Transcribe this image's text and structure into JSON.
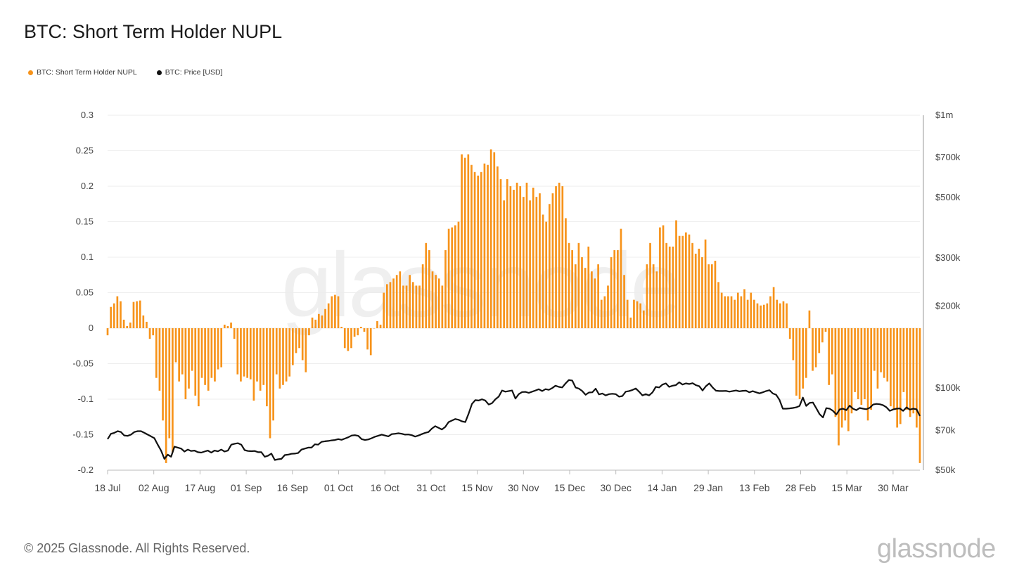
{
  "header": {
    "title": "BTC: Short Term Holder NUPL"
  },
  "legend": {
    "items": [
      {
        "label": "BTC: Short Term Holder NUPL",
        "color": "#f7931a"
      },
      {
        "label": "BTC: Price [USD]",
        "color": "#111111"
      }
    ]
  },
  "footer": {
    "copyright": "© 2025 Glassnode. All Rights Reserved.",
    "logo": "glassnode"
  },
  "watermark": "glassnode",
  "chart_data": {
    "type": "bar",
    "title": "BTC: Short Term Holder NUPL",
    "x_tick_labels": [
      "18 Jul",
      "02 Aug",
      "17 Aug",
      "01 Sep",
      "16 Sep",
      "01 Oct",
      "16 Oct",
      "31 Oct",
      "15 Nov",
      "30 Nov",
      "15 Dec",
      "30 Dec",
      "14 Jan",
      "29 Jan",
      "13 Feb",
      "28 Feb",
      "15 Mar",
      "30 Mar"
    ],
    "left_axis": {
      "ylim": [
        -0.2,
        0.3
      ],
      "ticks": [
        -0.2,
        -0.15,
        -0.1,
        -0.05,
        0,
        0.05,
        0.1,
        0.15,
        0.2,
        0.25,
        0.3
      ],
      "tick_labels": [
        "-0.2",
        "-0.15",
        "-0.1",
        "-0.05",
        "0",
        "0.05",
        "0.1",
        "0.15",
        "0.2",
        "0.25",
        "0.3"
      ]
    },
    "right_axis": {
      "scale": "log",
      "ylim": [
        50000,
        1000000
      ],
      "ticks": [
        50000,
        70000,
        100000,
        200000,
        300000,
        500000,
        700000,
        1000000
      ],
      "tick_labels": [
        "$50k",
        "$70k",
        "$100k",
        "$200k",
        "$300k",
        "$500k",
        "$700k",
        "$1m"
      ]
    },
    "series": [
      {
        "name": "BTC: Short Term Holder NUPL",
        "type": "bar",
        "color": "#f7931a",
        "values": [
          -0.01,
          0.03,
          0.035,
          0.045,
          0.038,
          0.012,
          0.003,
          0.008,
          0.037,
          0.038,
          0.039,
          0.018,
          0.009,
          -0.015,
          -0.01,
          -0.07,
          -0.088,
          -0.13,
          -0.19,
          -0.155,
          -0.175,
          -0.048,
          -0.075,
          -0.065,
          -0.1,
          -0.085,
          -0.06,
          -0.095,
          -0.11,
          -0.07,
          -0.08,
          -0.088,
          -0.07,
          -0.075,
          -0.058,
          -0.055,
          0.005,
          0.003,
          0.008,
          -0.015,
          -0.065,
          -0.075,
          -0.068,
          -0.07,
          -0.072,
          -0.102,
          -0.075,
          -0.088,
          -0.08,
          -0.11,
          -0.155,
          -0.13,
          -0.065,
          -0.085,
          -0.08,
          -0.075,
          -0.068,
          -0.052,
          -0.035,
          -0.028,
          -0.045,
          -0.062,
          -0.01,
          0.015,
          0.012,
          0.02,
          0.018,
          0.027,
          0.035,
          0.045,
          0.047,
          0.045,
          0.002,
          -0.028,
          -0.032,
          -0.028,
          -0.012,
          -0.01,
          0.002,
          -0.005,
          -0.03,
          -0.038,
          0.0,
          0.01,
          0.005,
          0.05,
          0.062,
          0.065,
          0.07,
          0.075,
          0.08,
          0.06,
          0.06,
          0.075,
          0.065,
          0.06,
          0.06,
          0.09,
          0.12,
          0.11,
          0.08,
          0.075,
          0.07,
          0.06,
          0.11,
          0.14,
          0.142,
          0.145,
          0.15,
          0.245,
          0.24,
          0.245,
          0.23,
          0.22,
          0.215,
          0.22,
          0.232,
          0.23,
          0.252,
          0.248,
          0.228,
          0.21,
          0.18,
          0.21,
          0.2,
          0.195,
          0.205,
          0.2,
          0.185,
          0.205,
          0.18,
          0.198,
          0.185,
          0.19,
          0.16,
          0.15,
          0.175,
          0.19,
          0.2,
          0.205,
          0.2,
          0.155,
          0.12,
          0.11,
          0.09,
          0.12,
          0.1,
          0.085,
          0.115,
          0.08,
          0.07,
          0.09,
          0.04,
          0.045,
          0.06,
          0.1,
          0.11,
          0.11,
          0.14,
          0.075,
          0.04,
          0.015,
          0.04,
          0.038,
          0.035,
          0.025,
          0.09,
          0.12,
          0.09,
          0.08,
          0.142,
          0.145,
          0.12,
          0.115,
          0.115,
          0.152,
          0.13,
          0.13,
          0.135,
          0.132,
          0.12,
          0.105,
          0.112,
          0.1,
          0.125,
          0.09,
          0.09,
          0.095,
          0.065,
          0.05,
          0.045,
          0.045,
          0.045,
          0.04,
          0.05,
          0.045,
          0.055,
          0.04,
          0.05,
          0.04,
          0.035,
          0.032,
          0.033,
          0.035,
          0.045,
          0.058,
          0.04,
          0.035,
          0.038,
          0.035,
          -0.015,
          -0.045,
          -0.095,
          -0.1,
          -0.085,
          -0.07,
          0.025,
          -0.06,
          -0.055,
          -0.035,
          -0.02,
          -0.005,
          -0.08,
          -0.065,
          -0.125,
          -0.165,
          -0.14,
          -0.13,
          -0.145,
          -0.12,
          -0.09,
          -0.1,
          -0.108,
          -0.1,
          -0.13,
          -0.115,
          -0.06,
          -0.085,
          -0.062,
          -0.07,
          -0.075,
          -0.11,
          -0.115,
          -0.14,
          -0.135,
          -0.09,
          -0.115,
          -0.125,
          -0.12,
          -0.14,
          -0.19
        ]
      },
      {
        "name": "BTC: Price [USD]",
        "type": "line",
        "color": "#111111",
        "scale": "log",
        "values": [
          65000,
          68000,
          68500,
          69500,
          69000,
          67000,
          66800,
          67500,
          69000,
          69500,
          69500,
          68500,
          67500,
          66500,
          65500,
          62000,
          59000,
          55000,
          57000,
          56000,
          61000,
          60500,
          60000,
          58500,
          59500,
          58800,
          59000,
          58200,
          58000,
          58500,
          59000,
          58000,
          59000,
          58600,
          59500,
          58500,
          59000,
          62000,
          62500,
          62800,
          62000,
          59200,
          58800,
          58700,
          58800,
          58200,
          58200,
          56000,
          56500,
          57500,
          54500,
          54800,
          55000,
          56800,
          57000,
          57400,
          57500,
          57800,
          59500,
          60000,
          60500,
          60500,
          62200,
          62000,
          63500,
          63800,
          64000,
          64300,
          64500,
          65000,
          64600,
          65300,
          66000,
          67000,
          67200,
          66800,
          65000,
          64500,
          64800,
          65500,
          66300,
          66900,
          67500,
          67000,
          66500,
          67800,
          68000,
          68300,
          68000,
          67500,
          67600,
          67200,
          66400,
          67000,
          67800,
          68500,
          69000,
          71000,
          72500,
          71500,
          70500,
          72000,
          75000,
          76000,
          77000,
          76500,
          75500,
          75000,
          80500,
          87500,
          90300,
          90000,
          91000,
          90000,
          87000,
          88000,
          91000,
          93000,
          98000,
          97000,
          97500,
          98000,
          91500,
          95000,
          96700,
          96800,
          96000,
          97000,
          98000,
          99000,
          97500,
          99100,
          98500,
          100000,
          102000,
          101000,
          100500,
          104000,
          107000,
          106500,
          100500,
          99500,
          97500,
          94500,
          96300,
          96500,
          99500,
          94800,
          95500,
          94000,
          95000,
          95300,
          95000,
          93000,
          93500,
          97000,
          97500,
          98400,
          99700,
          97000,
          94000,
          95000,
          94000,
          96400,
          101000,
          100500,
          103000,
          104000,
          101000,
          102000,
          102500,
          105000,
          103000,
          104000,
          103500,
          104200,
          102500,
          101500,
          98000,
          101600,
          104000,
          100500,
          97800,
          97500,
          97500,
          97600,
          97000,
          97500,
          98000,
          97300,
          97700,
          97800,
          96500,
          97400,
          96500,
          95600,
          96500,
          97500,
          98200,
          95500,
          94500,
          90500,
          84000,
          84000,
          84200,
          84500,
          85000,
          86000,
          92300,
          86000,
          88200,
          88500,
          84300,
          80200,
          78000,
          84400,
          84000,
          82500,
          80000,
          83500,
          84000,
          83000,
          86200,
          84000,
          83000,
          84500,
          84000,
          83600,
          84600,
          87000,
          87500,
          87200,
          86500,
          85000,
          82500,
          83500,
          84000,
          84200,
          82500,
          85000,
          83400,
          84000,
          83600,
          79000
        ]
      }
    ]
  }
}
